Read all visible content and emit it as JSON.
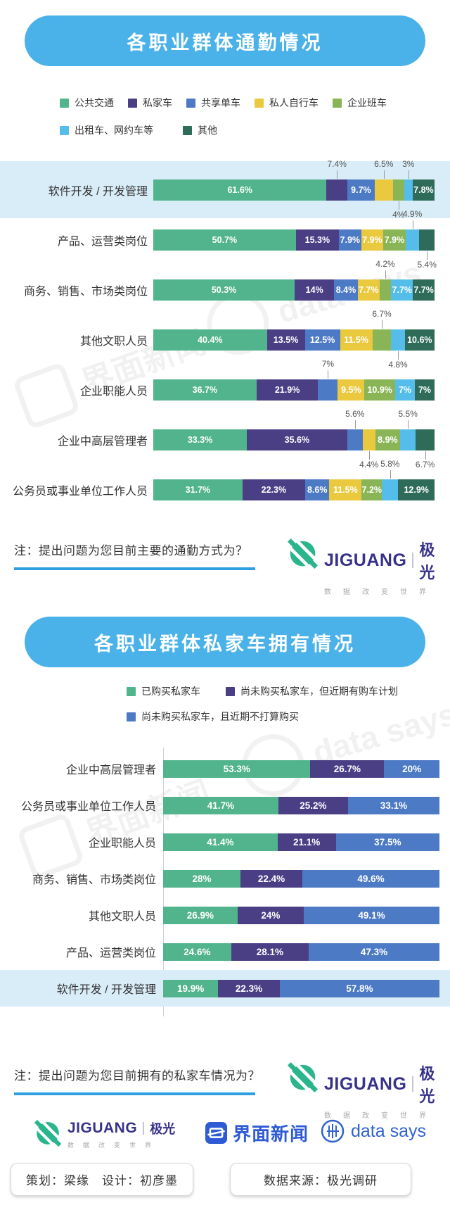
{
  "branding": {
    "jiguang_en": "JIGUANG",
    "jiguang_cn": "极光",
    "jiguang_tagline": "数据改变世界",
    "jiemian": "界面新闻",
    "datasays": "data says"
  },
  "footer": {
    "credits": "策划：梁缘　设计：初彦墨",
    "source": "数据来源：极光调研"
  },
  "watermarks": {
    "jiemian": "界面新闻",
    "datasays": "data says"
  },
  "colors": {
    "header_bg": "#4ab2e8",
    "highlight_band": "#d9edf8",
    "note_underline": "#2f9fdf",
    "jiguang_green": "#2ab58c",
    "jiguang_navy": "#38328a",
    "jiemian_blue": "#2e5bd5",
    "datasays_blue": "#2f63cf"
  },
  "chart_data": [
    {
      "type": "bar",
      "stacked": true,
      "orientation": "horizontal",
      "title": "各职业群体通勤情况",
      "note": "注：提出问题为您目前主要的通勤方式为？",
      "xlim": [
        0,
        100
      ],
      "unit": "%",
      "grid": false,
      "legend_position": "top",
      "series": [
        {
          "name": "公共交通",
          "color": "#52b48c"
        },
        {
          "name": "私家车",
          "color": "#4a3f85"
        },
        {
          "name": "共享单车",
          "color": "#4d7ac5"
        },
        {
          "name": "私人自行车",
          "color": "#eac93f"
        },
        {
          "name": "企业班车",
          "color": "#8ab557"
        },
        {
          "name": "出租车、网约车等",
          "color": "#55bde9"
        },
        {
          "name": "其他",
          "color": "#2e6b58"
        }
      ],
      "legend_rows": [
        [
          0,
          1,
          2,
          3,
          4
        ],
        [
          5,
          6
        ]
      ],
      "rows": [
        {
          "category": "软件开发 / 开发管理",
          "highlight": true,
          "values": [
            61.6,
            7.4,
            9.7,
            6.5,
            4,
            3,
            7.8
          ],
          "labels": [
            "61.6%",
            "7.4%",
            "9.7%",
            "6.5%",
            "4%",
            "3%",
            "7.8%"
          ],
          "label_pos": [
            "inside",
            "above",
            "inside",
            "above",
            "below",
            "above",
            "inside"
          ]
        },
        {
          "category": "产品、运营类岗位",
          "highlight": false,
          "values": [
            50.7,
            15.3,
            7.9,
            7.9,
            7.9,
            4.9,
            5.4
          ],
          "labels": [
            "50.7%",
            "15.3%",
            "7.9%",
            "7.9%",
            "7.9%",
            "4.9%",
            "5.4%"
          ],
          "label_pos": [
            "inside",
            "inside",
            "inside",
            "inside",
            "inside",
            "above",
            "below"
          ]
        },
        {
          "category": "商务、销售、市场类岗位",
          "highlight": false,
          "values": [
            50.3,
            14,
            8.4,
            7.7,
            4.2,
            7.7,
            7.7
          ],
          "labels": [
            "50.3%",
            "14%",
            "8.4%",
            "7.7%",
            "4.2%",
            "7.7%",
            "7.7%"
          ],
          "label_pos": [
            "inside",
            "inside",
            "inside",
            "inside",
            "above",
            "inside",
            "inside"
          ]
        },
        {
          "category": "其他文职人员",
          "highlight": false,
          "values": [
            40.4,
            13.5,
            12.5,
            11.5,
            6.7,
            4.8,
            10.6
          ],
          "labels": [
            "40.4%",
            "13.5%",
            "12.5%",
            "11.5%",
            "6.7%",
            "4.8%",
            "10.6%"
          ],
          "label_pos": [
            "inside",
            "inside",
            "inside",
            "inside",
            "above",
            "below",
            "inside"
          ]
        },
        {
          "category": "企业职能人员",
          "highlight": false,
          "values": [
            36.7,
            21.9,
            7,
            9.5,
            10.9,
            7,
            7
          ],
          "labels": [
            "36.7%",
            "21.9%",
            "7%",
            "9.5%",
            "10.9%",
            "7%",
            "7%"
          ],
          "label_pos": [
            "inside",
            "inside",
            "above",
            "inside",
            "inside",
            "inside",
            "inside"
          ]
        },
        {
          "category": "企业中高层管理者",
          "highlight": false,
          "values": [
            33.3,
            35.6,
            5.6,
            4.4,
            8.9,
            5.5,
            6.7
          ],
          "labels": [
            "33.3%",
            "35.6%",
            "5.6%",
            "4.4%",
            "8.9%",
            "5.5%",
            "6.7%"
          ],
          "label_pos": [
            "inside",
            "inside",
            "above",
            "below",
            "inside",
            "above",
            "below"
          ]
        },
        {
          "category": "公务员或事业单位工作人员",
          "highlight": false,
          "values": [
            31.7,
            22.3,
            8.6,
            11.5,
            7.2,
            5.8,
            12.9
          ],
          "labels": [
            "31.7%",
            "22.3%",
            "8.6%",
            "11.5%",
            "7.2%",
            "5.8%",
            "12.9%"
          ],
          "label_pos": [
            "inside",
            "inside",
            "inside",
            "inside",
            "inside",
            "above",
            "inside"
          ]
        }
      ]
    },
    {
      "type": "bar",
      "stacked": true,
      "orientation": "horizontal",
      "title": "各职业群体私家车拥有情况",
      "note": "注：提出问题为您目前拥有的私家车情况为？",
      "xlim": [
        0,
        100
      ],
      "unit": "%",
      "grid": false,
      "legend_position": "top",
      "series": [
        {
          "name": "已购买私家车",
          "color": "#52b48c"
        },
        {
          "name": "尚未购买私家车，但近期有购车计划",
          "color": "#4a3f85"
        },
        {
          "name": "尚未购买私家车，且近期不打算购买",
          "color": "#4d7ac5"
        }
      ],
      "legend_rows": [
        [
          0,
          1
        ],
        [
          2
        ]
      ],
      "rows": [
        {
          "category": "企业中高层管理者",
          "highlight": false,
          "values": [
            53.3,
            26.7,
            20
          ],
          "labels": [
            "53.3%",
            "26.7%",
            "20%"
          ],
          "label_pos": [
            "inside",
            "inside",
            "inside"
          ]
        },
        {
          "category": "公务员或事业单位工作人员",
          "highlight": false,
          "values": [
            41.7,
            25.2,
            33.1
          ],
          "labels": [
            "41.7%",
            "25.2%",
            "33.1%"
          ],
          "label_pos": [
            "inside",
            "inside",
            "inside"
          ]
        },
        {
          "category": "企业职能人员",
          "highlight": false,
          "values": [
            41.4,
            21.1,
            37.5
          ],
          "labels": [
            "41.4%",
            "21.1%",
            "37.5%"
          ],
          "label_pos": [
            "inside",
            "inside",
            "inside"
          ]
        },
        {
          "category": "商务、销售、市场类岗位",
          "highlight": false,
          "values": [
            28,
            22.4,
            49.6
          ],
          "labels": [
            "28%",
            "22.4%",
            "49.6%"
          ],
          "label_pos": [
            "inside",
            "inside",
            "inside"
          ]
        },
        {
          "category": "其他文职人员",
          "highlight": false,
          "values": [
            26.9,
            24,
            49.1
          ],
          "labels": [
            "26.9%",
            "24%",
            "49.1%"
          ],
          "label_pos": [
            "inside",
            "inside",
            "inside"
          ]
        },
        {
          "category": "产品、运营类岗位",
          "highlight": false,
          "values": [
            24.6,
            28.1,
            47.3
          ],
          "labels": [
            "24.6%",
            "28.1%",
            "47.3%"
          ],
          "label_pos": [
            "inside",
            "inside",
            "inside"
          ]
        },
        {
          "category": "软件开发 / 开发管理",
          "highlight": true,
          "values": [
            19.9,
            22.3,
            57.8
          ],
          "labels": [
            "19.9%",
            "22.3%",
            "57.8%"
          ],
          "label_pos": [
            "inside",
            "inside",
            "inside"
          ]
        }
      ]
    }
  ]
}
